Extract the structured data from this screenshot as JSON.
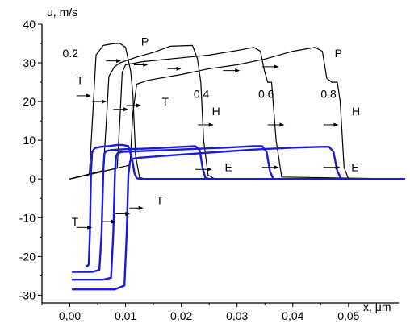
{
  "chart_data": {
    "type": "line",
    "title": "",
    "xlabel": "x, μm",
    "ylabel": "u, m/s",
    "xlim": [
      -0.005,
      0.059
    ],
    "ylim": [
      -32,
      40
    ],
    "x_ticks": [
      0.0,
      0.01,
      0.02,
      0.03,
      0.04,
      0.05
    ],
    "x_tick_labels": [
      "0,00",
      "0,01",
      "0,02",
      "0,03",
      "0,04",
      "0,05"
    ],
    "y_ticks": [
      -30,
      -20,
      -10,
      0,
      10,
      20,
      30,
      40
    ],
    "y_tick_labels": [
      "-30",
      "-20",
      "-10",
      "0",
      "10",
      "20",
      "30",
      "40"
    ],
    "colors": {
      "black": "#000000",
      "blue": "#1a1adb"
    },
    "series": [
      {
        "color": "#000000",
        "x": [
          0.0,
          0.0035,
          0.004,
          0.0047,
          0.006,
          0.008,
          0.009,
          0.01,
          0.0109,
          0.0113,
          0.0118,
          0.0125,
          0.0135,
          0.06
        ],
        "y": [
          0.0,
          1.2,
          14.0,
          32.0,
          34.5,
          35.0,
          35.0,
          34.0,
          28.0,
          22.0,
          6.0,
          0.4,
          0.0,
          0.0
        ]
      },
      {
        "color": "#000000",
        "x": [
          0.0,
          0.006,
          0.0066,
          0.007,
          0.008,
          0.009,
          0.012,
          0.015,
          0.018,
          0.022,
          0.0229,
          0.0235,
          0.024,
          0.0248,
          0.026,
          0.06
        ],
        "y": [
          0.0,
          2.2,
          16.0,
          26.5,
          29.0,
          30.0,
          31.5,
          32.7,
          34.3,
          34.5,
          31.0,
          25.0,
          10.0,
          1.0,
          0.0,
          0.0
        ]
      },
      {
        "color": "#000000",
        "x": [
          0.0,
          0.0085,
          0.009,
          0.0094,
          0.01,
          0.013,
          0.02,
          0.025,
          0.03,
          0.033,
          0.0342,
          0.0349,
          0.0355,
          0.0362,
          0.037,
          0.038,
          0.06
        ],
        "y": [
          0.0,
          2.8,
          16.0,
          27.5,
          29.5,
          30.3,
          31.3,
          32.0,
          33.2,
          34.0,
          33.0,
          28.0,
          25.0,
          25.0,
          10.0,
          0.5,
          0.0
        ]
      },
      {
        "color": "#000000",
        "x": [
          0.0,
          0.0108,
          0.0113,
          0.012,
          0.014,
          0.02,
          0.025,
          0.03,
          0.035,
          0.04,
          0.044,
          0.0453,
          0.0461,
          0.047,
          0.048,
          0.0485,
          0.0492,
          0.05,
          0.06
        ],
        "y": [
          0.0,
          3.6,
          17.0,
          24.5,
          25.5,
          27.0,
          28.5,
          29.5,
          31.0,
          33.0,
          34.0,
          33.0,
          26.0,
          25.0,
          25.0,
          20.0,
          3.0,
          0.0,
          0.0
        ]
      },
      {
        "color": "#1a1adb",
        "x": [
          0.003,
          0.0032,
          0.0034,
          0.0036,
          0.0038,
          0.004,
          0.0045,
          0.0055,
          0.007,
          0.0085,
          0.0095,
          0.0105,
          0.0112,
          0.0116,
          0.012,
          0.013,
          0.06
        ],
        "y": [
          -22.5,
          -22.5,
          -22.0,
          -14.0,
          2.0,
          7.0,
          8.0,
          8.3,
          8.5,
          8.8,
          8.8,
          8.5,
          5.0,
          1.5,
          0.2,
          0.0,
          0.0
        ]
      },
      {
        "color": "#1a1adb",
        "x": [
          0.0005,
          0.004,
          0.0053,
          0.0057,
          0.006,
          0.0062,
          0.0065,
          0.0075,
          0.01,
          0.013,
          0.016,
          0.02,
          0.0225,
          0.0233,
          0.0238,
          0.0243,
          0.025,
          0.06
        ],
        "y": [
          -24.0,
          -24.0,
          -23.5,
          -14.0,
          2.0,
          6.5,
          7.2,
          7.5,
          7.7,
          7.8,
          8.0,
          8.3,
          8.5,
          7.5,
          3.0,
          0.3,
          0.0,
          0.0
        ]
      },
      {
        "color": "#1a1adb",
        "x": [
          0.0005,
          0.006,
          0.0074,
          0.0078,
          0.0081,
          0.0083,
          0.0086,
          0.0095,
          0.013,
          0.018,
          0.023,
          0.028,
          0.033,
          0.0345,
          0.0353,
          0.0359,
          0.0365,
          0.06
        ],
        "y": [
          -26.0,
          -26.0,
          -25.5,
          -14.0,
          2.0,
          6.0,
          6.7,
          7.0,
          7.2,
          7.5,
          7.8,
          8.1,
          8.5,
          8.5,
          7.0,
          2.0,
          0.0,
          0.0
        ]
      },
      {
        "color": "#1a1adb",
        "x": [
          0.0005,
          0.008,
          0.0098,
          0.0102,
          0.0105,
          0.0108,
          0.0112,
          0.0125,
          0.017,
          0.025,
          0.033,
          0.04,
          0.045,
          0.0465,
          0.0473,
          0.048,
          0.0487,
          0.06
        ],
        "y": [
          -28.5,
          -28.5,
          -27.5,
          -14.0,
          1.0,
          4.5,
          5.2,
          5.5,
          6.0,
          6.8,
          7.6,
          8.1,
          8.3,
          8.3,
          7.0,
          2.0,
          0.0,
          0.0
        ]
      }
    ],
    "annotations": [
      {
        "text": "0.2",
        "x": -0.0013,
        "y": 31.5
      },
      {
        "text": "P",
        "x": 0.0128,
        "y": 34.5
      },
      {
        "text": "P",
        "x": 0.0475,
        "y": 31.5
      },
      {
        "text": "T",
        "x": 0.0012,
        "y": 24.5
      },
      {
        "text": "T",
        "x": 0.0165,
        "y": 19.0
      },
      {
        "text": "0.4",
        "x": 0.0222,
        "y": 21.0
      },
      {
        "text": "0.6",
        "x": 0.0338,
        "y": 21.0
      },
      {
        "text": "0.8",
        "x": 0.045,
        "y": 21.0
      },
      {
        "text": "H",
        "x": 0.0255,
        "y": 16.5
      },
      {
        "text": "H",
        "x": 0.0506,
        "y": 16.5
      },
      {
        "text": "E",
        "x": 0.0278,
        "y": 2.0
      },
      {
        "text": "E",
        "x": 0.0505,
        "y": 2.0
      },
      {
        "text": "T",
        "x": 0.0155,
        "y": -6.5
      },
      {
        "text": "T",
        "x": 0.0003,
        "y": -12.0
      }
    ],
    "arrows": [
      [
        0.0065,
        30.5,
        0.0092,
        30.5
      ],
      [
        0.0115,
        29.5,
        0.014,
        29.5
      ],
      [
        0.0175,
        28.5,
        0.02,
        28.5
      ],
      [
        0.0275,
        28.0,
        0.0305,
        28.0
      ],
      [
        0.0345,
        29.0,
        0.0375,
        29.0
      ],
      [
        0.0012,
        21.5,
        0.0038,
        21.5
      ],
      [
        0.004,
        20.0,
        0.0066,
        20.0
      ],
      [
        0.0078,
        18.0,
        0.0105,
        18.0
      ],
      [
        0.0101,
        19.0,
        0.0128,
        19.0
      ],
      [
        0.023,
        14.0,
        0.0258,
        14.0
      ],
      [
        0.0355,
        14.0,
        0.0385,
        14.0
      ],
      [
        0.0455,
        14.0,
        0.0482,
        14.0
      ],
      [
        0.0225,
        2.5,
        0.0255,
        2.5
      ],
      [
        0.0345,
        3.0,
        0.0375,
        3.0
      ],
      [
        0.0455,
        3.0,
        0.0485,
        3.0
      ],
      [
        0.0012,
        -12.5,
        0.004,
        -12.5
      ],
      [
        0.0057,
        -11.0,
        0.0083,
        -11.0
      ],
      [
        0.0082,
        -9.0,
        0.0108,
        -9.0
      ],
      [
        0.0107,
        -7.5,
        0.0132,
        -7.5
      ]
    ]
  }
}
